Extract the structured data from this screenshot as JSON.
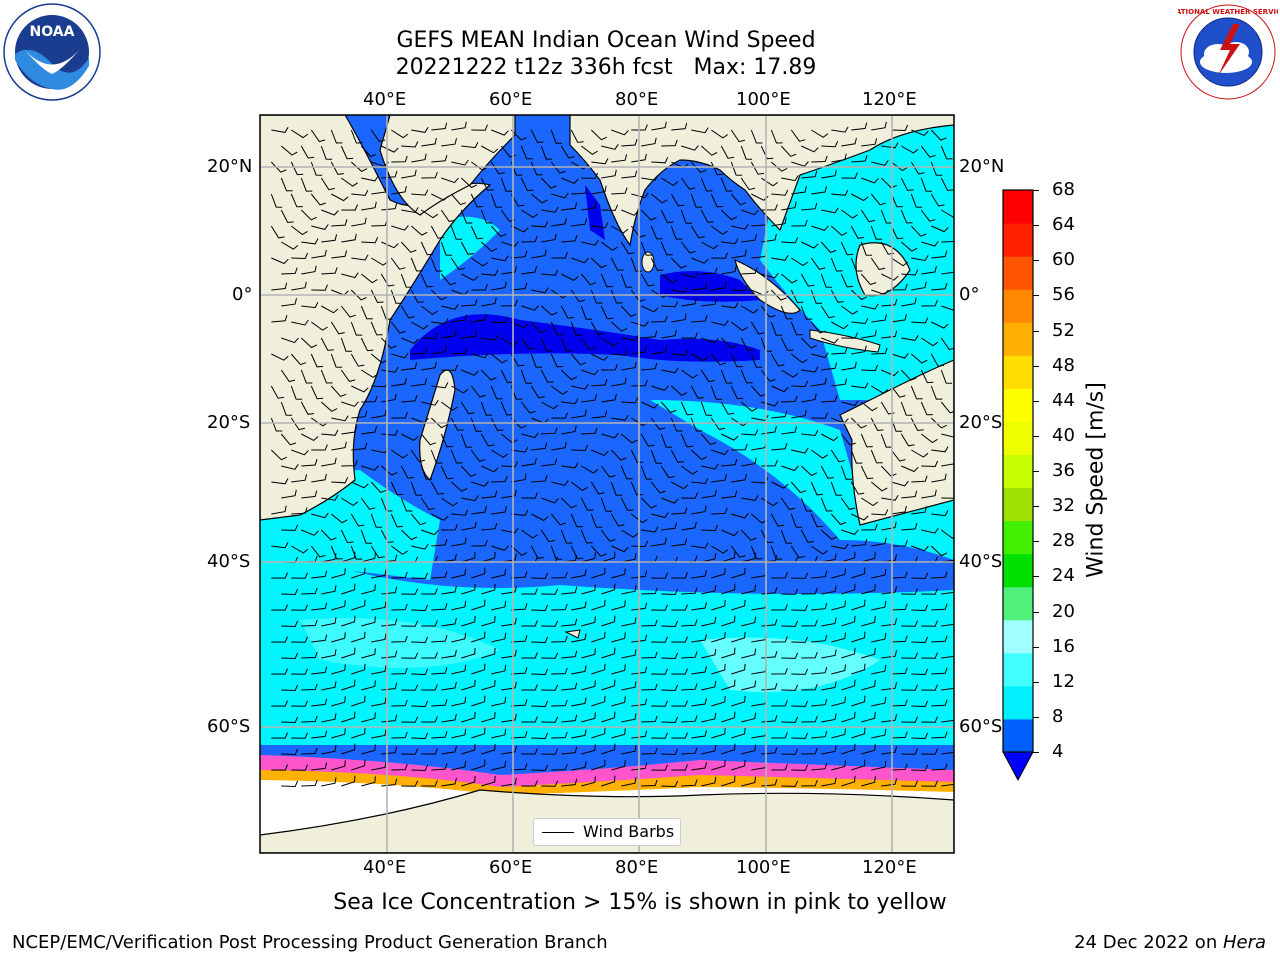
{
  "title": {
    "line1": "GEFS MEAN Indian Ocean Wind Speed",
    "line2": "20221222 t12z 336h fcst   Max: 17.89"
  },
  "axes": {
    "lon_ticks_top": [
      "40°E",
      "60°E",
      "80°E",
      "100°E",
      "120°E"
    ],
    "lon_ticks_bottom": [
      "40°E",
      "60°E",
      "80°E",
      "100°E",
      "120°E"
    ],
    "lat_ticks_left": [
      "20°N",
      "0°",
      "20°S",
      "40°S",
      "60°S"
    ],
    "lat_ticks_right": [
      "20°N",
      "0°",
      "20°S",
      "40°S",
      "60°S"
    ]
  },
  "legend": {
    "label": "Wind Barbs"
  },
  "colorbar": {
    "label": "Wind Speed [m/s]",
    "ticks": [
      "68",
      "64",
      "60",
      "56",
      "52",
      "48",
      "44",
      "40",
      "36",
      "32",
      "28",
      "24",
      "20",
      "16",
      "12",
      "8",
      "4"
    ],
    "colors_bottom_to_top": [
      "#0060ff",
      "#00f0ff",
      "#40ffff",
      "#a0ffff",
      "#50f07a",
      "#00e000",
      "#40f000",
      "#a0e000",
      "#c8ff00",
      "#f0ff00",
      "#ffff00",
      "#ffdd00",
      "#ffb000",
      "#ff8800",
      "#ff5500",
      "#ff2000",
      "#ff0000"
    ],
    "under_color": "#0000ff"
  },
  "map_colors": {
    "land": "#efefdc",
    "ice": "#ffffff",
    "blue": "#1a66ff",
    "deep_blue": "#0000ee",
    "cyan": "#00f5ff",
    "light_cyan": "#66ffff",
    "pink": "#ff55cc"
  },
  "logos": {
    "left": "NOAA",
    "right": "NATIONAL WEATHER SERVICE"
  },
  "notes": {
    "sea_ice": "Sea Ice Concentration > 15% is shown in pink to yellow"
  },
  "footer": {
    "left": "NCEP/EMC/Verification Post Processing Product Generation Branch",
    "right_date": "24 Dec 2022 on ",
    "right_host": "Hera"
  }
}
